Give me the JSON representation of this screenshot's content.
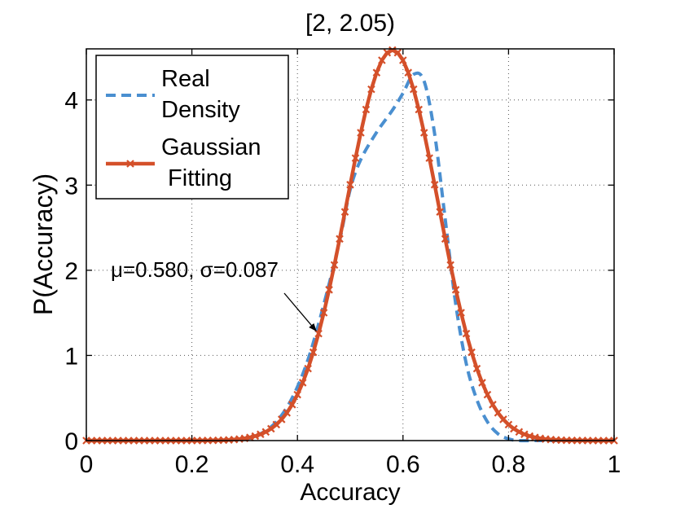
{
  "chart_data": {
    "type": "line",
    "title": "[2, 2.05)",
    "xlabel": "Accuracy",
    "ylabel": "P(Accuracy)",
    "xlim": [
      0,
      1
    ],
    "ylim": [
      0,
      4.6
    ],
    "xticks": [
      0,
      0.2,
      0.4,
      0.6,
      0.8,
      1
    ],
    "xtick_labels": [
      "0",
      "0.2",
      "0.4",
      "0.6",
      "0.8",
      "1"
    ],
    "yticks": [
      0,
      1,
      2,
      3,
      4
    ],
    "ytick_labels": [
      "0",
      "1",
      "2",
      "3",
      "4"
    ],
    "grid": true,
    "legend_position": "top-left",
    "series": [
      {
        "name": "Real Density",
        "legend_lines": [
          "Real",
          "Density"
        ],
        "style": "dashed",
        "color": "#4a8fd0",
        "x": [
          0,
          0.2,
          0.3,
          0.33,
          0.36,
          0.39,
          0.42,
          0.45,
          0.48,
          0.5,
          0.52,
          0.55,
          0.58,
          0.6,
          0.62,
          0.64,
          0.66,
          0.68,
          0.7,
          0.72,
          0.74,
          0.76,
          0.78,
          0.8,
          0.82,
          0.85,
          0.9,
          1
        ],
        "y": [
          0,
          0,
          0.02,
          0.08,
          0.22,
          0.5,
          0.95,
          1.6,
          2.35,
          2.95,
          3.3,
          3.62,
          3.88,
          4.08,
          4.3,
          4.22,
          3.6,
          2.6,
          1.6,
          0.9,
          0.48,
          0.22,
          0.08,
          0.02,
          0,
          0,
          0,
          0
        ]
      },
      {
        "name": "Gaussian Fitting",
        "legend_lines": [
          "Gaussian",
          " Fitting"
        ],
        "style": "solid-marker-x",
        "color": "#d4502a",
        "mu": 0.58,
        "sigma": 0.087,
        "x_start": 0,
        "x_end": 1,
        "x_step": 0.01
      }
    ],
    "annotation": {
      "text": "μ=0.580, σ=0.087",
      "arrow_to_x": 0.44,
      "arrow_to_y": 1.25
    }
  }
}
